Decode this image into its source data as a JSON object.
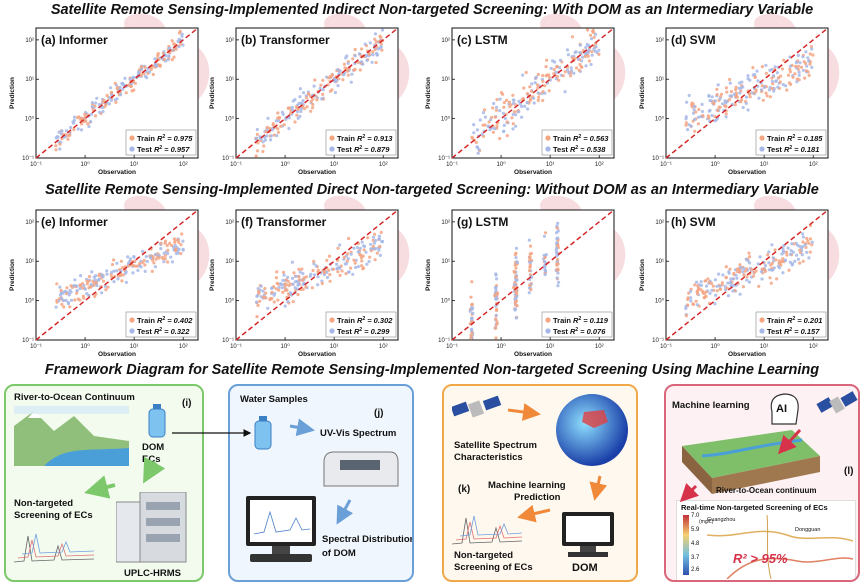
{
  "titles": {
    "indirect": "Satellite Remote Sensing-Implemented Indirect Non-targeted Screening: With DOM as an Intermediary Variable",
    "direct": "Satellite Remote Sensing-Implemented Direct Non-targeted Screening: Without DOM as an Intermediary Variable",
    "framework": "Framework Diagram for Satellite Remote Sensing-Implemented Non-targeted Screening Using Machine Learning"
  },
  "colors": {
    "train": "#f4a582",
    "test": "#a6b8e8",
    "diagonal": "#d62728"
  },
  "chart_data": [
    {
      "type": "scatter",
      "label": "(a) Informer",
      "xlabel": "Observation",
      "ylabel": "Prediction",
      "xlim": [
        0.1,
        200
      ],
      "ylim": [
        0.1,
        200
      ],
      "scale": "log",
      "legend": "bottom-right",
      "train_label": "Train",
      "test_label": "Test",
      "r2_symbol": "R",
      "train_r2": "0.975",
      "test_r2": "0.957",
      "train_text": "= 0.975",
      "test_text": "= 0.957",
      "spread": 0.25
    },
    {
      "type": "scatter",
      "label": "(b) Transformer",
      "xlabel": "Observation",
      "ylabel": "Prediction",
      "xlim": [
        0.1,
        200
      ],
      "ylim": [
        0.1,
        200
      ],
      "scale": "log",
      "legend": "bottom-right",
      "train_label": "Train",
      "test_label": "Test",
      "r2_symbol": "R",
      "train_r2": "0.913",
      "test_r2": "0.879",
      "train_text": "= 0.913",
      "test_text": "= 0.879",
      "spread": 0.35
    },
    {
      "type": "scatter",
      "label": "(c) LSTM",
      "xlabel": "Observation",
      "ylabel": "Prediction",
      "xlim": [
        0.1,
        200
      ],
      "ylim": [
        0.1,
        200
      ],
      "scale": "log",
      "legend": "bottom-right",
      "train_label": "Train",
      "test_label": "Test",
      "r2_symbol": "R",
      "train_r2": "0.563",
      "test_r2": "0.538",
      "train_text": "= 0.563",
      "test_text": "= 0.538",
      "spread": 0.55
    },
    {
      "type": "scatter",
      "label": "(d) SVM",
      "xlabel": "Observation",
      "ylabel": "Prediction",
      "xlim": [
        0.1,
        200
      ],
      "ylim": [
        0.1,
        200
      ],
      "scale": "log",
      "legend": "bottom-right",
      "train_label": "Train",
      "test_label": "Test",
      "r2_symbol": "R",
      "train_r2": "0.185",
      "test_r2": "0.181",
      "train_text": "= 0.185",
      "test_text": "= 0.181",
      "spread": 0.8
    },
    {
      "type": "scatter",
      "label": "(e) Informer",
      "xlabel": "Observation",
      "ylabel": "Prediction",
      "xlim": [
        0.1,
        200
      ],
      "ylim": [
        0.1,
        200
      ],
      "scale": "log",
      "legend": "bottom-right",
      "train_label": "Train",
      "test_label": "Test",
      "r2_symbol": "R",
      "train_r2": "0.402",
      "test_r2": "0.322",
      "train_text": "= 0.402",
      "test_text": "= 0.322",
      "spread": 0.65
    },
    {
      "type": "scatter",
      "label": "(f) Transformer",
      "xlabel": "Observation",
      "ylabel": "Prediction",
      "xlim": [
        0.1,
        200
      ],
      "ylim": [
        0.1,
        200
      ],
      "scale": "log",
      "legend": "bottom-right",
      "train_label": "Train",
      "test_label": "Test",
      "r2_symbol": "R",
      "train_r2": "0.302",
      "test_r2": "0.299",
      "train_text": "= 0.302",
      "test_text": "= 0.299",
      "spread": 0.7
    },
    {
      "type": "scatter",
      "label": "(g) LSTM",
      "xlabel": "Observation",
      "ylabel": "Prediction",
      "xlim": [
        0.1,
        200
      ],
      "ylim": [
        0.1,
        200
      ],
      "scale": "log",
      "legend": "bottom-right",
      "train_label": "Train",
      "test_label": "Test",
      "r2_symbol": "R",
      "train_r2": "0.119",
      "test_r2": "0.076",
      "train_text": "= 0.119",
      "test_text": "= 0.076",
      "spread": 0.85
    },
    {
      "type": "scatter",
      "label": "(h) SVM",
      "xlabel": "Observation",
      "ylabel": "Prediction",
      "xlim": [
        0.1,
        200
      ],
      "ylim": [
        0.1,
        200
      ],
      "scale": "log",
      "legend": "bottom-right",
      "train_label": "Train",
      "test_label": "Test",
      "r2_symbol": "R",
      "train_r2": "0.201",
      "test_r2": "0.157",
      "train_text": "= 0.201",
      "test_text": "= 0.157",
      "spread": 0.8
    }
  ],
  "tick_labels": [
    "10⁻¹",
    "10⁰",
    "10¹",
    "10²"
  ],
  "framework": {
    "i": {
      "tag": "(i)",
      "continuum": "River-to-Ocean Continuum",
      "dom": "DOM",
      "ecs": "ECs",
      "screening": "Non-targeted",
      "screening2": "Screening of ECs",
      "instrument": "UPLC-HRMS"
    },
    "j": {
      "tag": "(j)",
      "samples": "Water Samples",
      "uvvis": "UV-Vis Spectrum",
      "spectral": "Spectral Distribution",
      "spectral2": "of DOM"
    },
    "k": {
      "tag": "(k)",
      "satellite": "Satellite Spectrum",
      "satellite2": "Characteristics",
      "dom": "DOM",
      "ml": "Machine learning",
      "ml2": "Prediction",
      "screening": "Non-targeted",
      "screening2": "Screening of ECs"
    },
    "l": {
      "tag": "(l)",
      "ml": "Machine learning",
      "ai": "AI",
      "continuum": "River-to-Ocean continuum",
      "realtime": "Real-time Non-targeted Screening of ECs",
      "r2": "R² > 95%",
      "city1": "Guangzhou",
      "city2": "Dongguan",
      "unit": "(mg/L)",
      "scale": [
        "7.0",
        "5.9",
        "4.8",
        "3.7",
        "2.6"
      ]
    }
  }
}
